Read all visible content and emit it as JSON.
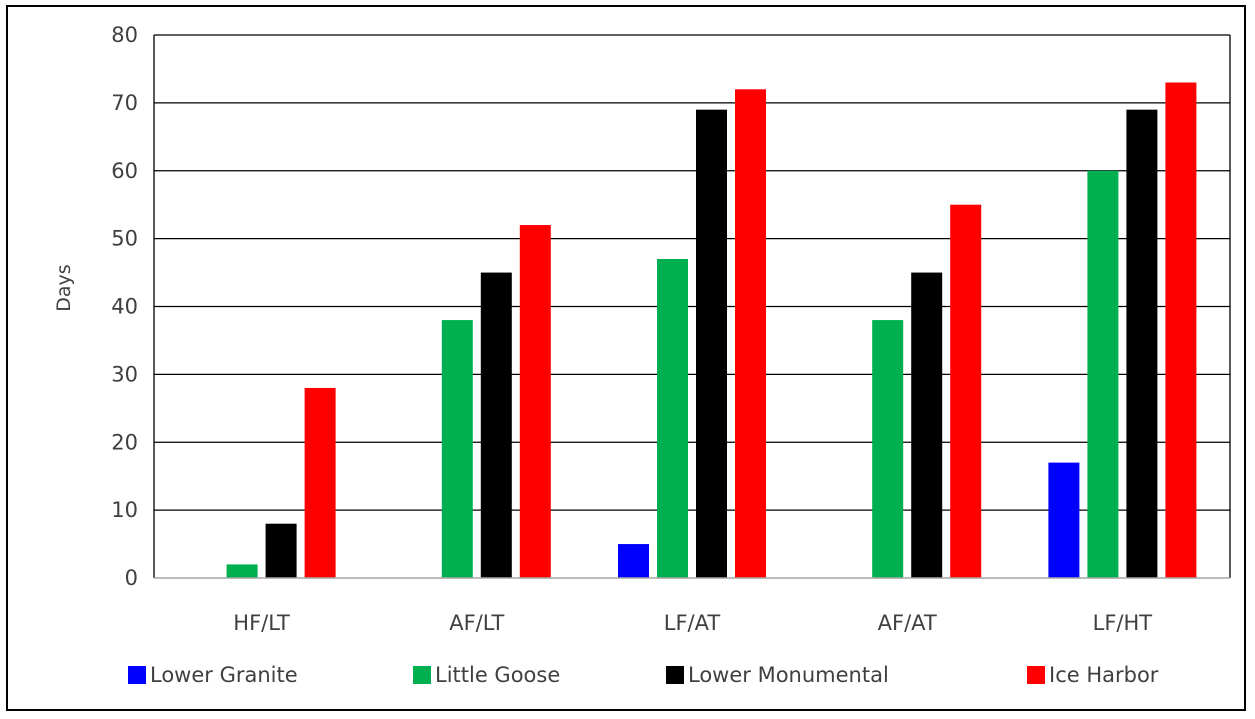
{
  "chart_data": {
    "type": "bar",
    "title": "",
    "xlabel": "",
    "ylabel": "Days",
    "ylim": [
      0,
      80
    ],
    "yticks": [
      0,
      10,
      20,
      30,
      40,
      50,
      60,
      70,
      80
    ],
    "grid": true,
    "legend_position": "bottom",
    "categories": [
      "HF/LT",
      "AF/LT",
      "LF/AT",
      "AF/AT",
      "LF/HT"
    ],
    "series": [
      {
        "name": "Lower Granite",
        "color": "#0000FF",
        "values": [
          0,
          0,
          5,
          0,
          17
        ]
      },
      {
        "name": "Little Goose",
        "color": "#00B050",
        "values": [
          2,
          38,
          47,
          38,
          60
        ]
      },
      {
        "name": "Lower Monumental",
        "color": "#000000",
        "values": [
          8,
          45,
          69,
          45,
          69
        ]
      },
      {
        "name": "Ice Harbor",
        "color": "#FF0000",
        "values": [
          28,
          52,
          72,
          55,
          73
        ]
      }
    ]
  }
}
